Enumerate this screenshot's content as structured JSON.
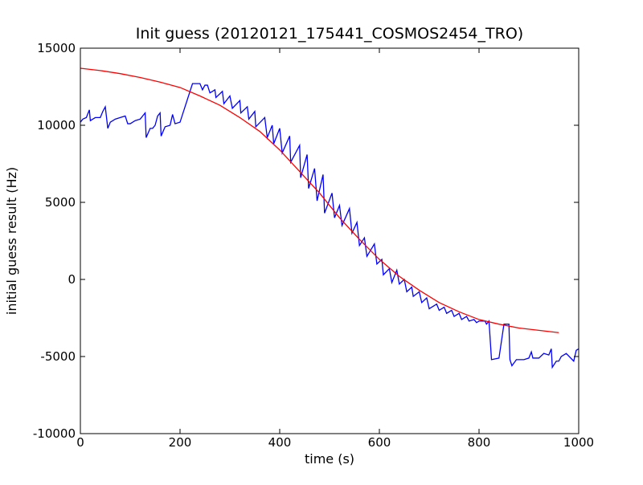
{
  "chart_data": {
    "type": "line",
    "title": "Init guess (20120121_175441_COSMOS2454_TRO)",
    "x_label": "time (s)",
    "y_label": "initial guess result (Hz)",
    "xlim": [
      0,
      1000
    ],
    "ylim": [
      -10000,
      15000
    ],
    "xticks": [
      0,
      200,
      400,
      600,
      800,
      1000
    ],
    "yticks": [
      -10000,
      -5000,
      0,
      5000,
      10000,
      15000
    ],
    "series": [
      {
        "color": "#0000ff",
        "x": [
          0,
          5,
          12,
          18,
          20,
          25,
          30,
          40,
          45,
          50,
          55,
          60,
          70,
          80,
          90,
          95,
          100,
          110,
          120,
          130,
          132,
          140,
          145,
          150,
          155,
          160,
          162,
          170,
          180,
          185,
          190,
          200,
          225,
          240,
          245,
          250,
          255,
          260,
          265,
          270,
          272,
          285,
          288,
          300,
          305,
          320,
          322,
          335,
          338,
          350,
          352,
          370,
          375,
          385,
          388,
          400,
          405,
          420,
          422,
          440,
          442,
          455,
          458,
          470,
          475,
          487,
          490,
          505,
          510,
          520,
          525,
          540,
          545,
          555,
          560,
          570,
          575,
          590,
          595,
          605,
          608,
          620,
          625,
          635,
          640,
          650,
          655,
          665,
          668,
          680,
          685,
          695,
          700,
          715,
          720,
          730,
          735,
          745,
          750,
          760,
          765,
          775,
          780,
          790,
          795,
          800,
          812,
          815,
          820,
          825,
          840,
          850,
          860,
          862,
          866,
          875,
          890,
          900,
          905,
          908,
          920,
          930,
          940,
          945,
          947,
          955,
          960,
          965,
          970,
          975,
          990,
          995,
          1000
        ],
        "values": [
          10200,
          10400,
          10500,
          11000,
          10300,
          10400,
          10500,
          10500,
          10900,
          11200,
          9800,
          10200,
          10400,
          10500,
          10600,
          10100,
          10100,
          10300,
          10400,
          10800,
          9200,
          9800,
          9800,
          10000,
          10600,
          10800,
          9300,
          9900,
          10000,
          10700,
          10100,
          10200,
          12700,
          12700,
          12300,
          12600,
          12600,
          12100,
          12200,
          12300,
          11800,
          12200,
          11400,
          11900,
          11100,
          11600,
          10800,
          11200,
          10400,
          10900,
          9900,
          10500,
          9200,
          10000,
          8800,
          9800,
          8200,
          9300,
          7600,
          8700,
          6600,
          8100,
          5900,
          7200,
          5100,
          6800,
          4300,
          5600,
          4000,
          4800,
          3500,
          4600,
          3000,
          3700,
          2200,
          2700,
          1500,
          2300,
          1000,
          1300,
          300,
          700,
          -200,
          600,
          -300,
          0,
          -800,
          -500,
          -1100,
          -800,
          -1500,
          -1200,
          -1900,
          -1600,
          -2000,
          -1800,
          -2200,
          -2000,
          -2400,
          -2200,
          -2600,
          -2400,
          -2700,
          -2600,
          -2800,
          -2700,
          -2700,
          -2900,
          -2700,
          -5200,
          -5100,
          -2900,
          -2900,
          -5200,
          -5600,
          -5200,
          -5200,
          -5100,
          -4700,
          -5100,
          -5100,
          -4800,
          -4900,
          -4500,
          -5700,
          -5300,
          -5300,
          -5000,
          -4900,
          -4800,
          -5300,
          -4600,
          -4500
        ]
      },
      {
        "color": "#ff0000",
        "x": [
          0,
          40,
          80,
          120,
          160,
          200,
          240,
          280,
          320,
          360,
          400,
          440,
          480,
          520,
          560,
          600,
          640,
          680,
          720,
          760,
          800,
          840,
          880,
          920,
          960
        ],
        "values": [
          13700,
          13550,
          13350,
          13100,
          12800,
          12450,
          11900,
          11300,
          10500,
          9600,
          8400,
          7000,
          5600,
          4000,
          2600,
          1300,
          200,
          -700,
          -1500,
          -2100,
          -2600,
          -2900,
          -3150,
          -3300,
          -3450
        ]
      }
    ]
  }
}
